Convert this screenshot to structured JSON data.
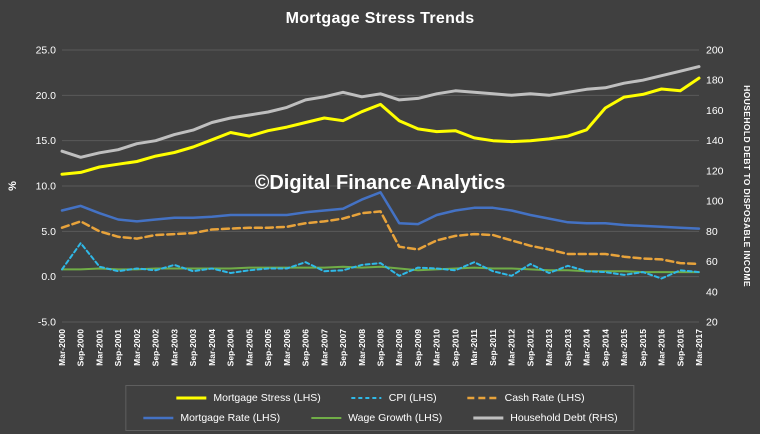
{
  "page": {
    "title": "Mortgage Stress Trends",
    "watermark": "©Digital Finance Analytics"
  },
  "chart_data": {
    "type": "line",
    "title": "Mortgage Stress Trends",
    "background_color": "#404040",
    "grid_color": "#5a5a5a",
    "text_color": "#ffffff",
    "grid": true,
    "categories": [
      "Mar-2000",
      "Sep-2000",
      "Mar-2001",
      "Sep-2001",
      "Mar-2002",
      "Sep-2002",
      "Mar-2003",
      "Sep-2003",
      "Mar-2004",
      "Sep-2004",
      "Mar-2005",
      "Sep-2005",
      "Mar-2006",
      "Sep-2006",
      "Mar-2007",
      "Sep-2007",
      "Mar-2008",
      "Sep-2008",
      "Mar-2009",
      "Sep-2009",
      "Mar-2010",
      "Sep-2010",
      "Mar-2011",
      "Sep-2011",
      "Mar-2012",
      "Sep-2012",
      "Mar-2013",
      "Sep-2013",
      "Mar-2014",
      "Sep-2014",
      "Mar-2015",
      "Sep-2015",
      "Mar-2016",
      "Sep-2016",
      "Mar-2017"
    ],
    "left_axis": {
      "label": "%",
      "min": -5,
      "max": 25,
      "tick_step": 5
    },
    "right_axis": {
      "label": "HOUSEHOLD DEBT TO DISPOSABLE INCOME",
      "min": 20,
      "max": 200,
      "tick_step": 20
    },
    "series": [
      {
        "name": "Household Debt (RHS)",
        "axis": "right",
        "color": "#bfbfbf",
        "dash": "",
        "width": 3,
        "values": [
          133,
          129,
          132,
          134,
          138,
          140,
          144,
          147,
          152,
          155,
          157,
          159,
          162,
          167,
          169,
          172,
          169,
          171,
          167,
          168,
          171,
          173,
          172,
          171,
          170,
          171,
          170,
          172,
          174,
          175,
          178,
          180,
          183,
          186,
          189
        ]
      },
      {
        "name": "Mortgage Stress (LHS)",
        "axis": "left",
        "color": "#ffff00",
        "dash": "",
        "width": 3,
        "values": [
          11.3,
          11.5,
          12.1,
          12.4,
          12.7,
          13.3,
          13.7,
          14.3,
          15.1,
          15.9,
          15.5,
          16.1,
          16.5,
          17.0,
          17.5,
          17.2,
          18.2,
          19.0,
          17.2,
          16.3,
          16.0,
          16.1,
          15.3,
          15.0,
          14.9,
          15.0,
          15.2,
          15.5,
          16.2,
          18.6,
          19.8,
          20.1,
          20.7,
          20.5,
          21.9
        ]
      },
      {
        "name": "Mortgage Rate (LHS)",
        "axis": "left",
        "color": "#4472c4",
        "dash": "",
        "width": 2.5,
        "values": [
          7.3,
          7.8,
          7.0,
          6.3,
          6.1,
          6.3,
          6.5,
          6.5,
          6.6,
          6.8,
          6.8,
          6.8,
          6.8,
          7.1,
          7.3,
          7.5,
          8.5,
          9.3,
          5.9,
          5.8,
          6.8,
          7.3,
          7.6,
          7.6,
          7.3,
          6.8,
          6.4,
          6.0,
          5.9,
          5.9,
          5.7,
          5.6,
          5.5,
          5.4,
          5.3
        ]
      },
      {
        "name": "Cash Rate (LHS)",
        "axis": "left",
        "color": "#e8a33b",
        "dash": "7 4",
        "width": 2.5,
        "values": [
          5.4,
          6.1,
          5.0,
          4.4,
          4.2,
          4.6,
          4.7,
          4.8,
          5.2,
          5.3,
          5.4,
          5.4,
          5.5,
          5.9,
          6.1,
          6.4,
          7.0,
          7.2,
          3.3,
          3.0,
          4.0,
          4.5,
          4.7,
          4.6,
          4.0,
          3.4,
          3.0,
          2.5,
          2.5,
          2.5,
          2.2,
          2.0,
          1.9,
          1.5,
          1.4
        ]
      },
      {
        "name": "Wage Growth (LHS)",
        "axis": "left",
        "color": "#70ad47",
        "dash": "",
        "width": 2,
        "values": [
          0.8,
          0.8,
          0.9,
          0.8,
          0.8,
          0.9,
          0.9,
          0.9,
          0.9,
          0.9,
          1.0,
          1.0,
          1.0,
          1.0,
          1.0,
          1.1,
          1.0,
          1.1,
          0.9,
          0.7,
          0.8,
          0.9,
          1.0,
          0.9,
          0.9,
          0.8,
          0.7,
          0.7,
          0.6,
          0.6,
          0.6,
          0.5,
          0.5,
          0.5,
          0.5
        ]
      },
      {
        "name": "CPI (LHS)",
        "axis": "left",
        "color": "#2fb9e8",
        "dash": "4 3",
        "width": 2,
        "values": [
          0.8,
          3.7,
          1.1,
          0.6,
          0.9,
          0.7,
          1.3,
          0.6,
          0.9,
          0.4,
          0.7,
          0.9,
          0.9,
          1.6,
          0.6,
          0.7,
          1.3,
          1.5,
          0.1,
          1.0,
          0.9,
          0.7,
          1.6,
          0.6,
          0.1,
          1.4,
          0.4,
          1.2,
          0.6,
          0.5,
          0.2,
          0.5,
          -0.2,
          0.7,
          0.5
        ]
      }
    ],
    "legend": {
      "position": "bottom",
      "rows": [
        [
          "Mortgage Stress (LHS)",
          "CPI (LHS)",
          "Cash Rate (LHS)"
        ],
        [
          "Mortgage Rate (LHS)",
          "Wage Growth (LHS)",
          "Household Debt (RHS)"
        ]
      ]
    }
  }
}
